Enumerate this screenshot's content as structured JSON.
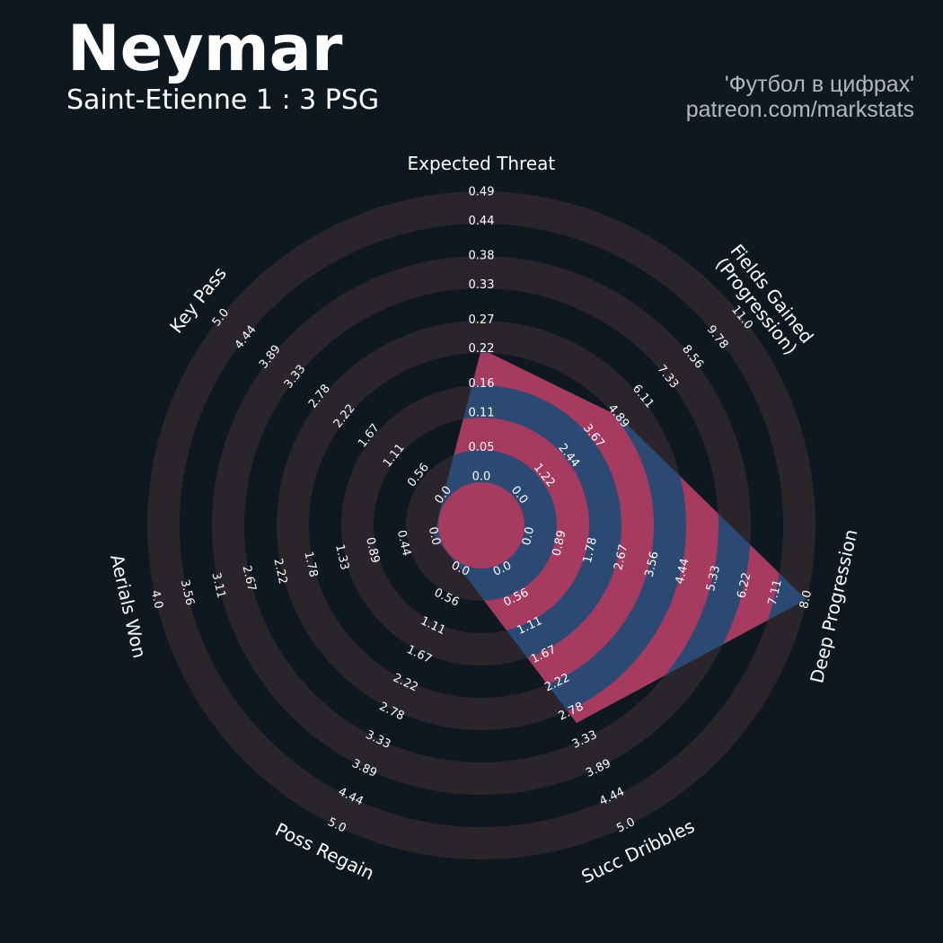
{
  "chart_data": {
    "type": "radar",
    "title": "Neymar",
    "subtitle": "Saint-Etienne 1 : 3 PSG",
    "credits": [
      "'Футбол в цифрах'",
      "patreon.com/markstats"
    ],
    "background": "#0e1821",
    "ring_color": "#29252b",
    "colors": [
      "#2a4a73",
      "#a63a5f"
    ],
    "axes": [
      {
        "name": "Expected Threat",
        "lim": [
          0,
          0.49
        ],
        "ticks": [
          {
            "value": 0,
            "label": "0.0"
          },
          0.05,
          0.11,
          0.16,
          0.22,
          0.27,
          0.33,
          0.38,
          0.44,
          0.49
        ]
      },
      {
        "name": "Fields Gained\n(Progression)",
        "lim": [
          0,
          11
        ],
        "ticks": [
          {
            "value": 0,
            "label": "0.0"
          },
          1.22,
          2.44,
          3.67,
          4.89,
          6.11,
          7.33,
          8.56,
          9.78,
          {
            "value": 11,
            "label": "11.0"
          }
        ]
      },
      {
        "name": "Deep Progression",
        "lim": [
          0,
          8
        ],
        "ticks": [
          {
            "value": 0,
            "label": "0.0"
          },
          0.89,
          1.78,
          2.67,
          3.56,
          4.44,
          5.33,
          6.22,
          7.11,
          {
            "value": 8,
            "label": "8.0"
          }
        ]
      },
      {
        "name": "Succ Dribbles",
        "lim": [
          0,
          5
        ],
        "ticks": [
          {
            "value": 0,
            "label": "0.0"
          },
          0.56,
          1.11,
          1.67,
          2.22,
          2.78,
          3.33,
          3.89,
          4.44,
          {
            "value": 5,
            "label": "5.0"
          }
        ]
      },
      {
        "name": "Poss Regain",
        "lim": [
          0,
          5
        ],
        "ticks": [
          {
            "value": 0,
            "label": "0.0"
          },
          0.56,
          1.11,
          1.67,
          2.22,
          2.78,
          3.33,
          3.89,
          4.44,
          {
            "value": 5,
            "label": "5.0"
          }
        ]
      },
      {
        "name": "Aerials Won",
        "lim": [
          0,
          4
        ],
        "ticks": [
          {
            "value": 0,
            "label": "0.0"
          },
          0.44,
          0.89,
          1.33,
          1.78,
          2.22,
          2.67,
          3.11,
          3.56,
          {
            "value": 4,
            "label": "4.0"
          }
        ]
      },
      {
        "name": "Key Pass",
        "lim": [
          0,
          5
        ],
        "ticks": [
          {
            "value": 0,
            "label": "0.0"
          },
          0.56,
          1.11,
          1.67,
          2.22,
          2.78,
          3.33,
          3.89,
          4.44,
          {
            "value": 5,
            "label": "5.0"
          }
        ]
      }
    ],
    "values": [
      0.22,
      4.9,
      8.0,
      3.0,
      0,
      0,
      0
    ]
  }
}
